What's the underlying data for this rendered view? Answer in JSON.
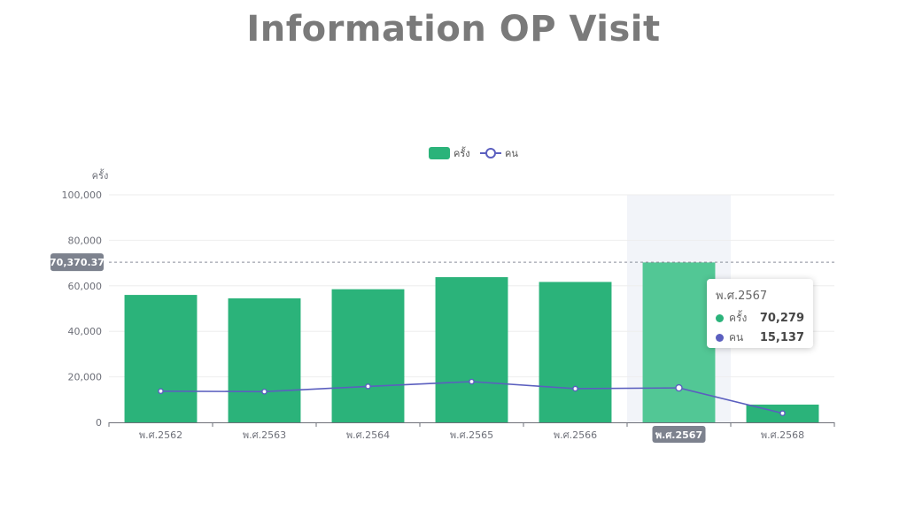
{
  "page": {
    "title": "Information OP Visit"
  },
  "colors": {
    "bar": "#2bb37a",
    "bar_highlight": "#52c795",
    "line": "#5b5fbf",
    "axis_pointer_bg": "#f2f4f9",
    "marker_label_bg": "#7d828e",
    "grid": "#eeeeee"
  },
  "chart_data": {
    "type": "bar",
    "categories": [
      "พ.ศ.2562",
      "พ.ศ.2563",
      "พ.ศ.2564",
      "พ.ศ.2565",
      "พ.ศ.2566",
      "พ.ศ.2567",
      "พ.ศ.2568"
    ],
    "series": [
      {
        "name": "ครั้ง",
        "type": "bar",
        "values": [
          56000,
          54500,
          58500,
          63800,
          61700,
          70279,
          7800
        ]
      },
      {
        "name": "คน",
        "type": "line",
        "values": [
          13700,
          13500,
          15800,
          17900,
          14800,
          15137,
          4000
        ]
      }
    ],
    "yaxis": {
      "name": "ครั้ง",
      "ticks": [
        "0",
        "20,000",
        "40,000",
        "60,000",
        "80,000",
        "100,000"
      ],
      "ylim": [
        0,
        100000
      ]
    },
    "markline": {
      "value": 70370.37,
      "label": "70,370.37"
    },
    "highlighted_category": "พ.ศ.2567",
    "legend_position": "top-center",
    "grid": true,
    "tooltip": {
      "title": "พ.ศ.2567",
      "rows": [
        {
          "name": "ครั้ง",
          "value": "70,279"
        },
        {
          "name": "คน",
          "value": "15,137"
        }
      ]
    }
  }
}
